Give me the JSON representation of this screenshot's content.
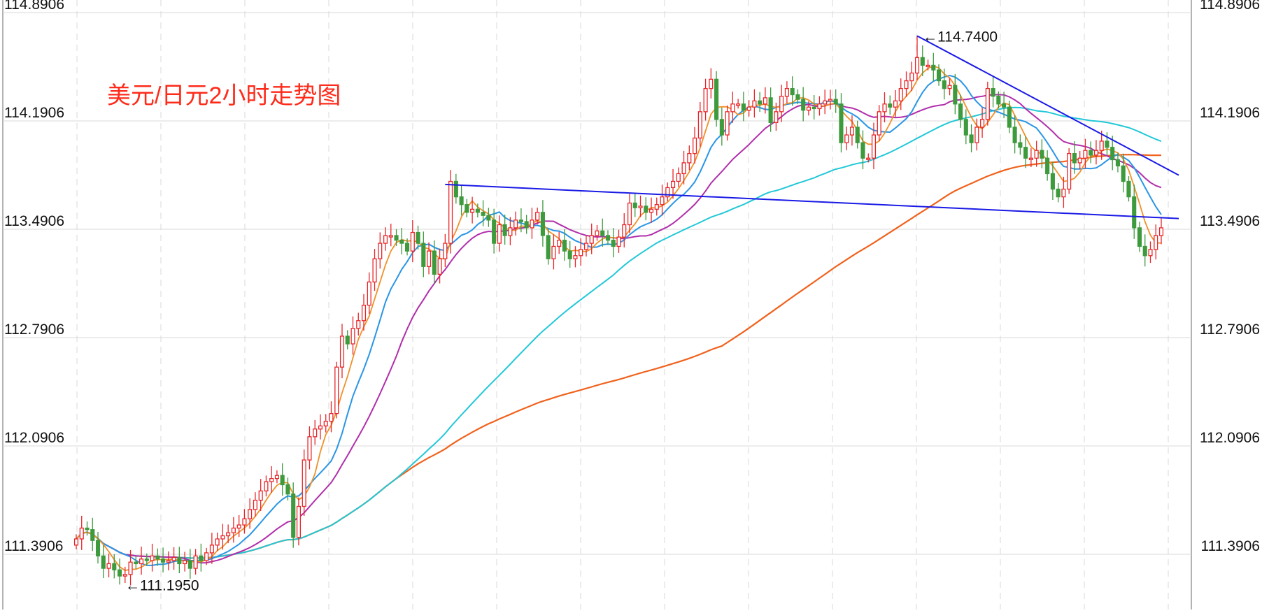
{
  "chart_data": {
    "type": "candlestick",
    "title": "美元/日元2小时走势图",
    "y_ticks": [
      "114.8906",
      "114.1906",
      "113.4906",
      "112.7906",
      "112.0906",
      "111.3906"
    ],
    "y_tick_values": [
      114.8906,
      114.1906,
      113.4906,
      112.7906,
      112.0906,
      111.3906
    ],
    "ylim": [
      111.05,
      114.8906
    ],
    "grid": true,
    "colors": {
      "up": "#e8262a",
      "down": "#3d9a3d",
      "title": "#ff2a1a",
      "ma5": "#f0902a",
      "ma10": "#2a96e6",
      "ma20": "#b12eab",
      "ma60": "#22c8d8",
      "ma120": "#f0621d",
      "trendline": "#1a1ae6",
      "grid": "#d9d9d9"
    },
    "annotations": [
      {
        "text": "114.7400",
        "kind": "high",
        "value": 114.74
      },
      {
        "text": "111.1950",
        "kind": "low",
        "value": 111.195
      }
    ],
    "trendline_points": [
      {
        "from": 113.78,
        "to": 113.56,
        "label": "horizontal resistance"
      },
      {
        "from": 114.74,
        "to": 113.84,
        "label": "descending"
      }
    ],
    "closes": [
      111.49,
      111.56,
      111.55,
      111.48,
      111.38,
      111.3,
      111.33,
      111.29,
      111.25,
      111.26,
      111.34,
      111.33,
      111.36,
      111.35,
      111.38,
      111.36,
      111.34,
      111.35,
      111.37,
      111.33,
      111.35,
      111.3,
      111.38,
      111.35,
      111.4,
      111.45,
      111.49,
      111.51,
      111.53,
      111.56,
      111.58,
      111.62,
      111.68,
      111.74,
      111.8,
      111.86,
      111.88,
      111.9,
      111.84,
      111.78,
      111.5,
      111.7,
      112.0,
      112.15,
      112.2,
      112.22,
      112.25,
      112.3,
      112.6,
      112.8,
      112.75,
      112.85,
      112.9,
      113.0,
      113.15,
      113.3,
      113.4,
      113.45,
      113.45,
      113.42,
      113.4,
      113.35,
      113.47,
      113.4,
      113.25,
      113.35,
      113.2,
      113.3,
      113.4,
      113.8,
      113.7,
      113.65,
      113.6,
      113.62,
      113.6,
      113.58,
      113.55,
      113.4,
      113.52,
      113.45,
      113.5,
      113.55,
      113.54,
      113.5,
      113.55,
      113.6,
      113.45,
      113.3,
      113.38,
      113.42,
      113.35,
      113.3,
      113.32,
      113.36,
      113.4,
      113.45,
      113.48,
      113.45,
      113.42,
      113.38,
      113.44,
      113.52,
      113.66,
      113.63,
      113.64,
      113.6,
      113.62,
      113.65,
      113.7,
      113.76,
      113.8,
      113.85,
      113.92,
      113.98,
      114.08,
      114.25,
      114.4,
      114.46,
      114.2,
      114.1,
      114.25,
      114.3,
      114.3,
      114.26,
      114.28,
      114.32,
      114.3,
      114.34,
      114.18,
      114.25,
      114.35,
      114.4,
      114.36,
      114.33,
      114.26,
      114.28,
      114.27,
      114.3,
      114.32,
      114.33,
      114.3,
      114.05,
      114.1,
      114.15,
      114.05,
      113.95,
      113.95,
      114.1,
      114.25,
      114.3,
      114.28,
      114.32,
      114.4,
      114.45,
      114.5,
      114.6,
      114.55,
      114.55,
      114.52,
      114.45,
      114.4,
      114.42,
      114.3,
      114.2,
      114.1,
      114.05,
      114.15,
      114.2,
      114.4,
      114.35,
      114.3,
      114.28,
      114.15,
      114.05,
      114.02,
      113.95,
      113.95,
      114.0,
      113.95,
      113.85,
      113.75,
      113.7,
      113.75,
      113.98,
      113.92,
      113.95,
      114.0,
      113.97,
      114.0,
      114.06,
      114.02,
      113.94,
      113.9,
      113.8,
      113.7,
      113.5,
      113.38,
      113.32,
      113.36,
      113.45,
      113.5
    ]
  }
}
